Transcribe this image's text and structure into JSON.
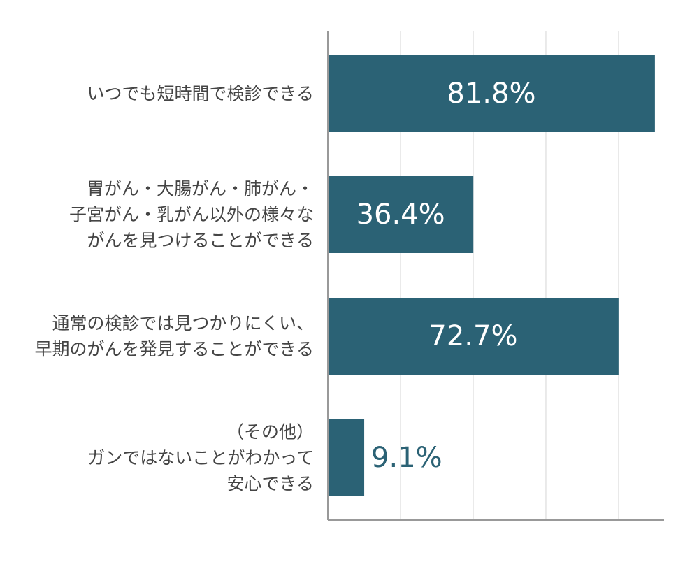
{
  "chart_data": {
    "type": "bar",
    "orientation": "horizontal",
    "categories": [
      "いつでも短時間で検診できる",
      "胃がん・大腸がん・肺がん・\n子宮がん・乳がん以外の様々な\nがんを見つけることができる",
      "通常の検診では見つかりにくい、\n早期のがんを発見することができる",
      "（その他）\nガンではないことがわかって\n安心できる"
    ],
    "values": [
      81.8,
      36.4,
      72.7,
      9.1
    ],
    "data_labels": [
      "81.8%",
      "36.4%",
      "72.7%",
      "9.1%"
    ],
    "xlim": [
      0,
      90
    ],
    "grid": true,
    "legend": "none",
    "colors": {
      "bar": "#2b6275",
      "label_inside": "#ffffff",
      "label_outside": "#2b6275",
      "category_text": "#444444",
      "grid": "#e3e3e3",
      "axis": "#999999"
    }
  }
}
